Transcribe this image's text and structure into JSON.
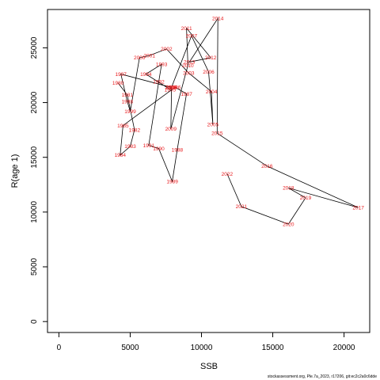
{
  "chart_data": {
    "type": "line",
    "xlabel": "SSB",
    "ylabel": "R(age 1)",
    "xlim": [
      -800,
      21800
    ],
    "ylim": [
      -1000,
      28500
    ],
    "xticks": [
      0,
      5000,
      10000,
      15000,
      20000
    ],
    "yticks": [
      0,
      5000,
      10000,
      15000,
      20000,
      25000
    ],
    "xtick_labels": [
      "0",
      "5000",
      "10000",
      "15000",
      "20000"
    ],
    "ytick_labels": [
      "0",
      "5000",
      "10000",
      "15000",
      "20000",
      "25000"
    ],
    "line_color": "#000000",
    "label_color": "#e8191c",
    "grid": false,
    "points": [
      {
        "year": "1980",
        "x": 4150,
        "y": 21800
      },
      {
        "year": "1981",
        "x": 4800,
        "y": 20700
      },
      {
        "year": "1982",
        "x": 5300,
        "y": 17500
      },
      {
        "year": "1983",
        "x": 5000,
        "y": 16000
      },
      {
        "year": "1984",
        "x": 4300,
        "y": 15200
      },
      {
        "year": "1985",
        "x": 4500,
        "y": 17900
      },
      {
        "year": "1986",
        "x": 8150,
        "y": 21400
      },
      {
        "year": "1987",
        "x": 8950,
        "y": 20800
      },
      {
        "year": "1988",
        "x": 8300,
        "y": 15700
      },
      {
        "year": "1989",
        "x": 7950,
        "y": 12800
      },
      {
        "year": "1990",
        "x": 7000,
        "y": 15800
      },
      {
        "year": "1991",
        "x": 6300,
        "y": 16100
      },
      {
        "year": "1992",
        "x": 7000,
        "y": 21900
      },
      {
        "year": "1993",
        "x": 7200,
        "y": 23500
      },
      {
        "year": "1994",
        "x": 6100,
        "y": 22600
      },
      {
        "year": "1995",
        "x": 7800,
        "y": 21200
      },
      {
        "year": "1996",
        "x": 7850,
        "y": 21400
      },
      {
        "year": "1997",
        "x": 4350,
        "y": 22600
      },
      {
        "year": "1998",
        "x": 4800,
        "y": 20100
      },
      {
        "year": "1999",
        "x": 5000,
        "y": 19200
      },
      {
        "year": "2000",
        "x": 5650,
        "y": 24100
      },
      {
        "year": "2001",
        "x": 6350,
        "y": 24300
      },
      {
        "year": "2002",
        "x": 7550,
        "y": 24900
      },
      {
        "year": "2003",
        "x": 9100,
        "y": 22700
      },
      {
        "year": "2004",
        "x": 10700,
        "y": 21000
      },
      {
        "year": "2005",
        "x": 10800,
        "y": 18000
      },
      {
        "year": "2006",
        "x": 10500,
        "y": 22800
      },
      {
        "year": "2007",
        "x": 9300,
        "y": 26100
      },
      {
        "year": "2008",
        "x": 7900,
        "y": 21400
      },
      {
        "year": "2009",
        "x": 7850,
        "y": 17600
      },
      {
        "year": "2010",
        "x": 9050,
        "y": 23400
      },
      {
        "year": "2011",
        "x": 8950,
        "y": 26800
      },
      {
        "year": "2012",
        "x": 10650,
        "y": 24100
      },
      {
        "year": "2013",
        "x": 9150,
        "y": 23700
      },
      {
        "year": "2014",
        "x": 11150,
        "y": 27700
      },
      {
        "year": "2015",
        "x": 11100,
        "y": 17200
      },
      {
        "year": "2016",
        "x": 14600,
        "y": 14200
      },
      {
        "year": "2017",
        "x": 21000,
        "y": 10400
      },
      {
        "year": "2018",
        "x": 16100,
        "y": 12200
      },
      {
        "year": "2019",
        "x": 17300,
        "y": 11300
      },
      {
        "year": "2020",
        "x": 16100,
        "y": 8900
      },
      {
        "year": "2021",
        "x": 12800,
        "y": 10500
      },
      {
        "year": "2022",
        "x": 11800,
        "y": 13500
      }
    ]
  },
  "footer_text": "stockassessment.org, Ple.7a_2023, r17206, git:ec2c2a0c6dde"
}
